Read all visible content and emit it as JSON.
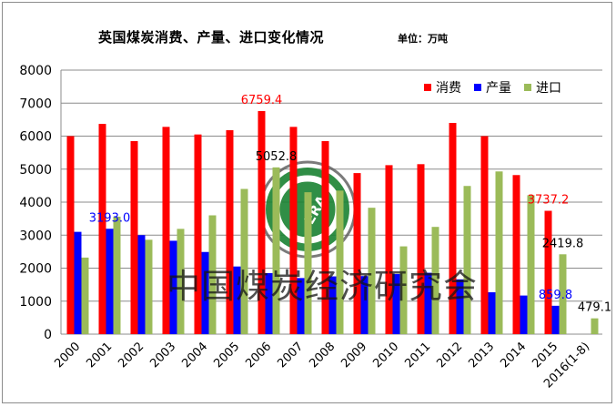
{
  "title": "英国煤炭消费、产量、进口变化情况",
  "unit": "单位：万吨",
  "watermark": "中国煤炭经济研究会",
  "logo_text": "CCERA",
  "chart_data": {
    "type": "bar",
    "categories": [
      "2000",
      "2001",
      "2002",
      "2003",
      "2004",
      "2005",
      "2006",
      "2007",
      "2008",
      "2009",
      "2010",
      "2011",
      "2012",
      "2013",
      "2014",
      "2015",
      "2016(1-8)"
    ],
    "ylim": [
      0,
      8000
    ],
    "yticks": [
      "0",
      "1000",
      "2000",
      "3000",
      "4000",
      "5000",
      "6000",
      "7000",
      "8000"
    ],
    "grid": true,
    "legend_position": "top-right",
    "series": [
      {
        "name": "消费",
        "color": "#ff0000",
        "values": [
          6000,
          6370,
          5850,
          6280,
          6050,
          6180,
          6759.4,
          6280,
          5850,
          4880,
          5120,
          5150,
          6400,
          6000,
          4820,
          3737.2,
          null
        ]
      },
      {
        "name": "产量",
        "color": "#0000ff",
        "values": [
          3100,
          3193.0,
          3000,
          2830,
          2490,
          2050,
          1850,
          1700,
          1750,
          1760,
          1820,
          1860,
          1660,
          1270,
          1170,
          859.8,
          null
        ]
      },
      {
        "name": "进口",
        "color": "#9bbb59",
        "values": [
          2320,
          3560,
          2860,
          3190,
          3600,
          4400,
          5052.8,
          4300,
          4350,
          3830,
          2660,
          3250,
          4490,
          4930,
          4210,
          2419.8,
          479.1
        ]
      }
    ],
    "annotations": [
      {
        "text": "6759.4",
        "series": "消费",
        "category": "2006",
        "color": "#ff0000"
      },
      {
        "text": "3193.0",
        "series": "产量",
        "category": "2001",
        "color": "#0000ff"
      },
      {
        "text": "5052.8",
        "series": "进口",
        "category": "2006",
        "color": "#000000"
      },
      {
        "text": "3737.2",
        "series": "消费",
        "category": "2015",
        "color": "#ff0000"
      },
      {
        "text": "859.8",
        "series": "产量",
        "category": "2015",
        "color": "#0000ff"
      },
      {
        "text": "2419.8",
        "series": "进口",
        "category": "2015",
        "color": "#000000"
      },
      {
        "text": "479.1",
        "series": "进口",
        "category": "2016(1-8)",
        "color": "#000000"
      }
    ]
  }
}
